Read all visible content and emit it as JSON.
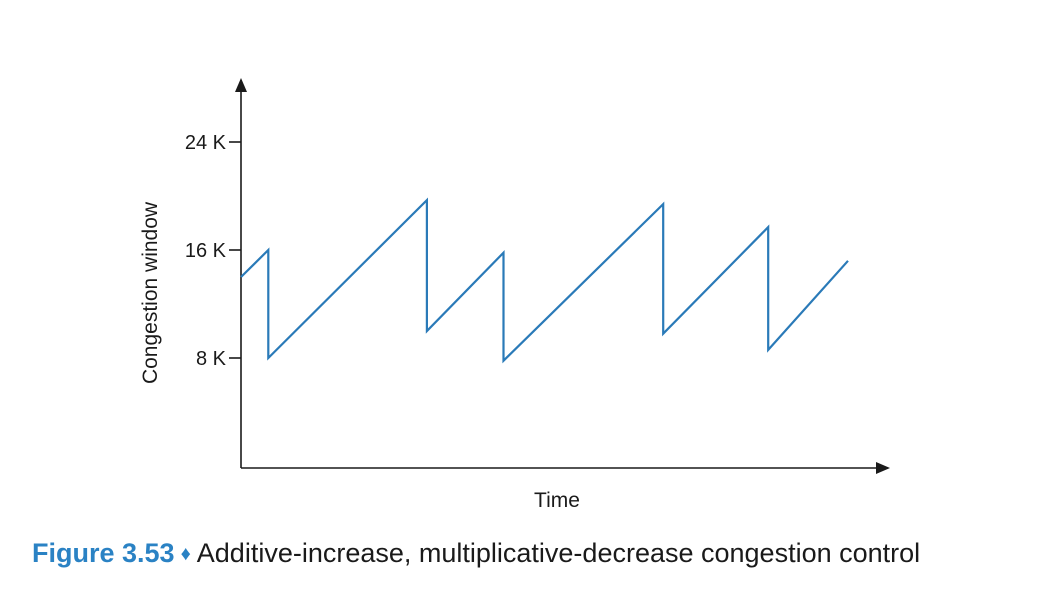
{
  "chart_data": {
    "type": "line",
    "xlabel": "Time",
    "ylabel": "Congestion window",
    "yticks": [
      {
        "value": 8,
        "label": "8 K"
      },
      {
        "value": 16,
        "label": "16 K"
      },
      {
        "value": 24,
        "label": "24 K"
      }
    ],
    "xticks": [],
    "ylim": [
      0,
      27
    ],
    "xlim": [
      0,
      61
    ],
    "grid": false,
    "legend": "none",
    "series": [
      {
        "color": "#2a7ab8",
        "points": [
          [
            0,
            14.0
          ],
          [
            2.6,
            16.0
          ],
          [
            2.6,
            8.0
          ],
          [
            17.7,
            19.7
          ],
          [
            17.7,
            10.0
          ],
          [
            25.0,
            15.8
          ],
          [
            25.0,
            7.8
          ],
          [
            40.2,
            19.4
          ],
          [
            40.2,
            9.8
          ],
          [
            50.2,
            17.7
          ],
          [
            50.2,
            8.6
          ],
          [
            57.8,
            15.2
          ]
        ]
      }
    ]
  },
  "caption": {
    "figure_number": "Figure 3.53",
    "separator": "♦",
    "text": "Additive-increase, multiplicative-decrease congestion control"
  }
}
